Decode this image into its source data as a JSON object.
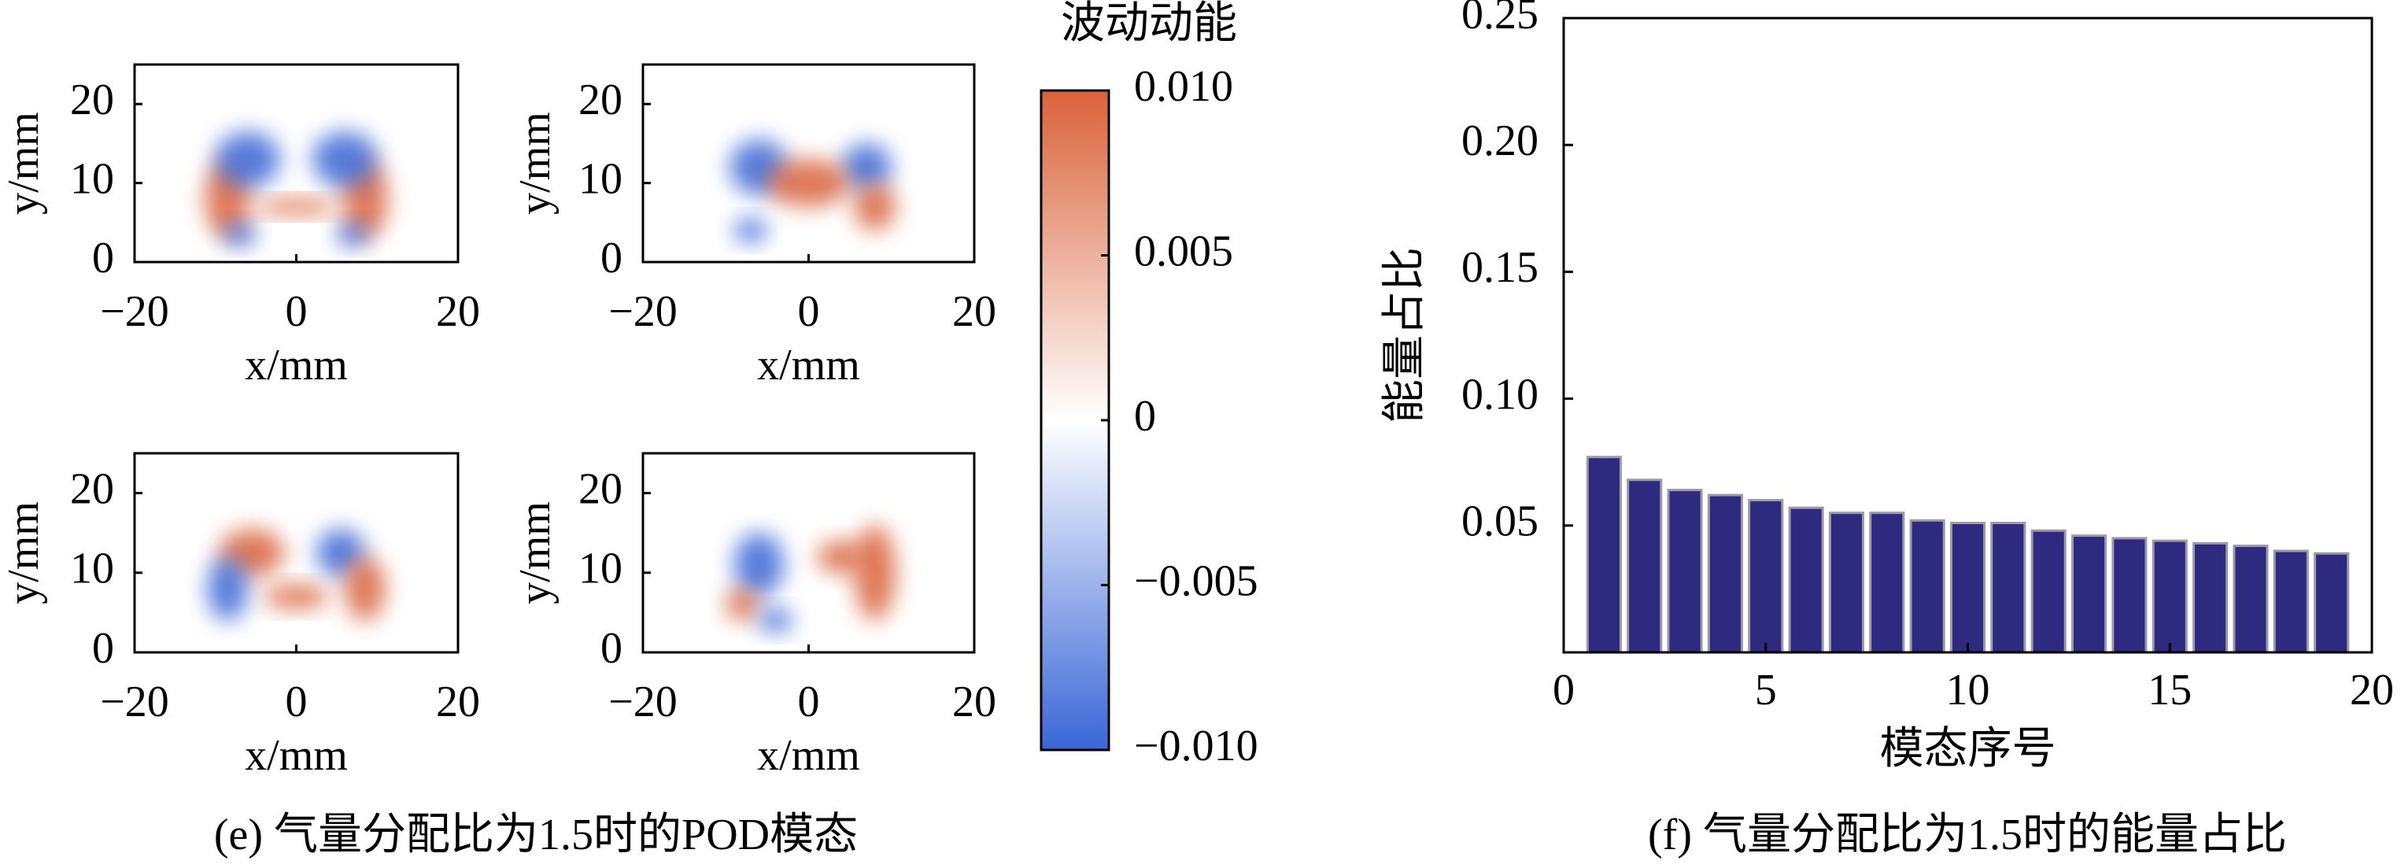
{
  "chart_data": [
    {
      "type": "heatmap",
      "xlabel": "x/mm",
      "ylabel": "y/mm",
      "xlim": [
        -20,
        20
      ],
      "ylim": [
        0,
        25
      ],
      "xticks": [
        {
          "value": -20,
          "label": "−20"
        },
        0,
        20
      ],
      "yticks": [
        0,
        10,
        20
      ],
      "caption": "(e) 气量分配比为1.5时的POD模态"
    },
    {
      "type": "heatmap",
      "xlabel": "x/mm",
      "ylabel": "y/mm",
      "xlim": [
        -20,
        20
      ],
      "ylim": [
        0,
        25
      ],
      "xticks": [
        {
          "value": -20,
          "label": "−20"
        },
        0,
        20
      ],
      "yticks": [
        0,
        10,
        20
      ]
    },
    {
      "type": "heatmap",
      "xlabel": "x/mm",
      "ylabel": "y/mm",
      "xlim": [
        -20,
        20
      ],
      "ylim": [
        0,
        25
      ],
      "xticks": [
        {
          "value": -20,
          "label": "−20"
        },
        0,
        20
      ],
      "yticks": [
        0,
        10,
        20
      ]
    },
    {
      "type": "heatmap",
      "xlabel": "x/mm",
      "ylabel": "y/mm",
      "xlim": [
        -20,
        20
      ],
      "ylim": [
        0,
        25
      ],
      "xticks": [
        {
          "value": -20,
          "label": "−20"
        },
        0,
        20
      ],
      "yticks": [
        0,
        10,
        20
      ]
    },
    {
      "type": "colorbar",
      "title": "波动动能",
      "ylim": [
        -0.01,
        0.01
      ],
      "yticks": [
        {
          "value": 0.01,
          "label": "0.010"
        },
        0.005,
        0,
        {
          "value": -0.005,
          "label": "−0.005"
        },
        {
          "value": -0.01,
          "label": "−0.010"
        }
      ],
      "colors": [
        "#3a66d6",
        "#ffffff",
        "#d9623a"
      ]
    },
    {
      "type": "bar",
      "xlabel": "模态序号",
      "ylabel": "能量占比",
      "caption": "(f) 气量分配比为1.5时的能量占比",
      "x": [
        1,
        2,
        3,
        4,
        5,
        6,
        7,
        8,
        9,
        10,
        11,
        12,
        13,
        14,
        15,
        16,
        17,
        18,
        19
      ],
      "values": [
        0.077,
        0.068,
        0.064,
        0.062,
        0.06,
        0.057,
        0.055,
        0.055,
        0.052,
        0.051,
        0.051,
        0.048,
        0.046,
        0.045,
        0.044,
        0.043,
        0.042,
        0.04,
        0.039
      ],
      "color": "#2e2a80",
      "xlim": [
        0,
        20
      ],
      "ylim": [
        0,
        0.25
      ],
      "xticks": [
        0,
        5,
        10,
        15,
        20
      ],
      "yticks": [
        0.05,
        {
          "value": 0.1,
          "label": "0.10"
        },
        0.15,
        {
          "value": 0.2,
          "label": "0.20"
        },
        0.25
      ]
    }
  ]
}
